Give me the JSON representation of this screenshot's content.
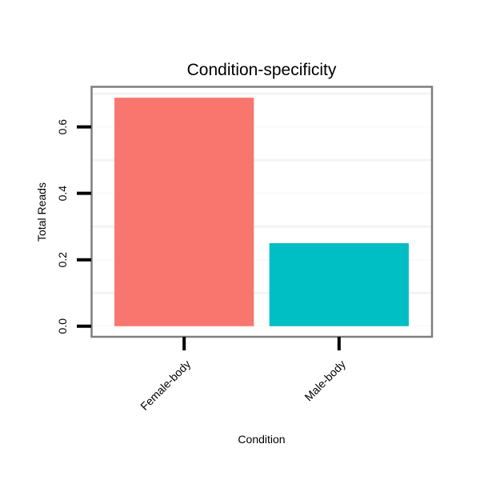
{
  "chart_data": {
    "type": "bar",
    "title": "Condition-specificity",
    "xlabel": "Condition",
    "ylabel": "Total Reads",
    "categories": [
      "Female-body",
      "Male-body"
    ],
    "values": [
      0.688,
      0.25
    ],
    "colors": [
      "#F8766D",
      "#00BFC4"
    ],
    "ylim": [
      -0.032,
      0.722
    ],
    "yticks": [
      0.0,
      0.2,
      0.4,
      0.6
    ],
    "ytick_labels": [
      "0.0",
      "0.2",
      "0.4",
      "0.6"
    ],
    "minor_grid": [
      0.1,
      0.3,
      0.5,
      0.7
    ],
    "grid": true,
    "legend": "none"
  }
}
